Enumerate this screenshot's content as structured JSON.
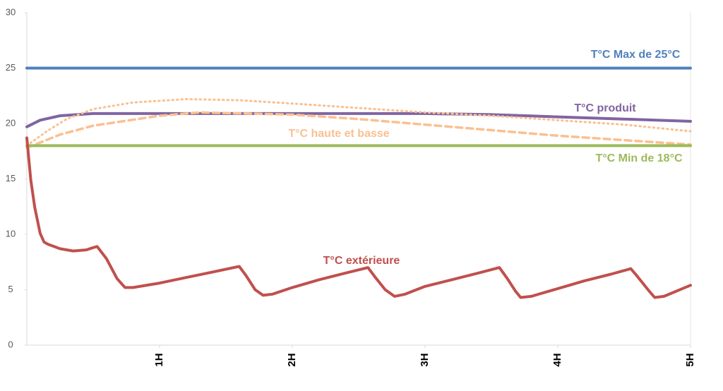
{
  "chart_data": {
    "type": "line",
    "xlim": [
      0,
      5
    ],
    "xticks": [
      {
        "value": 1,
        "label": "1H"
      },
      {
        "value": 2,
        "label": "2H"
      },
      {
        "value": 3,
        "label": "3H"
      },
      {
        "value": 4,
        "label": "4H"
      },
      {
        "value": 5,
        "label": "5H"
      }
    ],
    "ylim": [
      0,
      30
    ],
    "yticks": [
      0,
      5,
      10,
      15,
      20,
      25,
      30
    ],
    "series": [
      {
        "name": "T°C Max de 25°C",
        "color": "#4f81bd",
        "style": "solid",
        "x": [
          0,
          5
        ],
        "values": [
          25,
          25
        ]
      },
      {
        "name": "T°C produit",
        "color": "#8064a2",
        "style": "solid",
        "x": [
          0,
          0.1,
          0.25,
          0.5,
          1,
          2,
          3,
          3.5,
          4,
          4.5,
          5
        ],
        "values": [
          19.7,
          20.3,
          20.7,
          20.9,
          20.9,
          20.9,
          20.9,
          20.8,
          20.6,
          20.4,
          20.2
        ]
      },
      {
        "name": "T°C haute et basse",
        "color": "#fac090",
        "style": "dotted",
        "x": [
          0,
          0.15,
          0.3,
          0.5,
          0.8,
          1.2,
          1.6,
          2,
          2.5,
          3,
          3.5,
          4,
          4.5,
          5
        ],
        "values": [
          18.0,
          19.3,
          20.4,
          21.3,
          21.9,
          22.2,
          22.1,
          21.8,
          21.4,
          21.0,
          20.7,
          20.3,
          19.9,
          19.3
        ]
      },
      {
        "color": "#fac090",
        "style": "dashed",
        "x": [
          0,
          0.25,
          0.5,
          1,
          1.3,
          2,
          2.5,
          3,
          3.5,
          4,
          4.5,
          5
        ],
        "values": [
          17.8,
          19.0,
          19.8,
          20.7,
          21.0,
          20.8,
          20.4,
          19.9,
          19.4,
          18.9,
          18.5,
          18.1
        ]
      },
      {
        "name": "T°C Min de 18°C",
        "color": "#9bbb59",
        "style": "solid",
        "x": [
          0,
          5
        ],
        "values": [
          18,
          18
        ]
      },
      {
        "name": "T°C extérieure",
        "color": "#c0504d",
        "style": "solid",
        "x": [
          0,
          0.03,
          0.06,
          0.1,
          0.13,
          0.16,
          0.25,
          0.35,
          0.45,
          0.5,
          0.53,
          0.6,
          0.68,
          0.74,
          0.8,
          1.0,
          1.2,
          1.4,
          1.6,
          1.65,
          1.72,
          1.78,
          1.85,
          2.0,
          2.2,
          2.4,
          2.57,
          2.62,
          2.7,
          2.77,
          2.85,
          3.0,
          3.2,
          3.4,
          3.56,
          3.62,
          3.68,
          3.72,
          3.8,
          4.0,
          4.2,
          4.4,
          4.55,
          4.6,
          4.68,
          4.73,
          4.8,
          5.0
        ],
        "values": [
          18.7,
          14.9,
          12.4,
          10.1,
          9.3,
          9.1,
          8.7,
          8.5,
          8.6,
          8.8,
          8.9,
          7.8,
          6.0,
          5.2,
          5.2,
          5.6,
          6.1,
          6.6,
          7.1,
          6.3,
          5.0,
          4.5,
          4.6,
          5.2,
          5.9,
          6.5,
          7.0,
          6.2,
          5.0,
          4.4,
          4.6,
          5.3,
          5.9,
          6.5,
          7.0,
          6.0,
          4.9,
          4.3,
          4.4,
          5.1,
          5.8,
          6.4,
          6.9,
          6.2,
          5.0,
          4.3,
          4.4,
          5.4
        ]
      }
    ]
  }
}
